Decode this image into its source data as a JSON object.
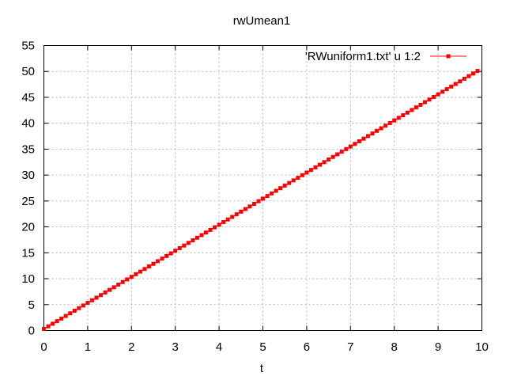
{
  "chart_data": {
    "type": "line",
    "title": "rwUmean1",
    "xlabel": "t",
    "ylabel": "",
    "xlim": [
      0,
      10
    ],
    "ylim": [
      0,
      55
    ],
    "xticks": [
      "0",
      "1",
      "2",
      "3",
      "4",
      "5",
      "6",
      "7",
      "8",
      "9",
      "10"
    ],
    "yticks": [
      "0",
      "5",
      "10",
      "15",
      "20",
      "25",
      "30",
      "35",
      "40",
      "45",
      "50",
      "55"
    ],
    "grid": true,
    "legend_position": "top-right",
    "series": [
      {
        "name": "'RWuniform1.txt' u 1:2",
        "color": "#ff0000",
        "marker": "filled-square",
        "x_start": 0,
        "x_end": 9.9,
        "x_step": 0.1,
        "y_start": 0.3,
        "y_end": 50.1
      }
    ]
  }
}
